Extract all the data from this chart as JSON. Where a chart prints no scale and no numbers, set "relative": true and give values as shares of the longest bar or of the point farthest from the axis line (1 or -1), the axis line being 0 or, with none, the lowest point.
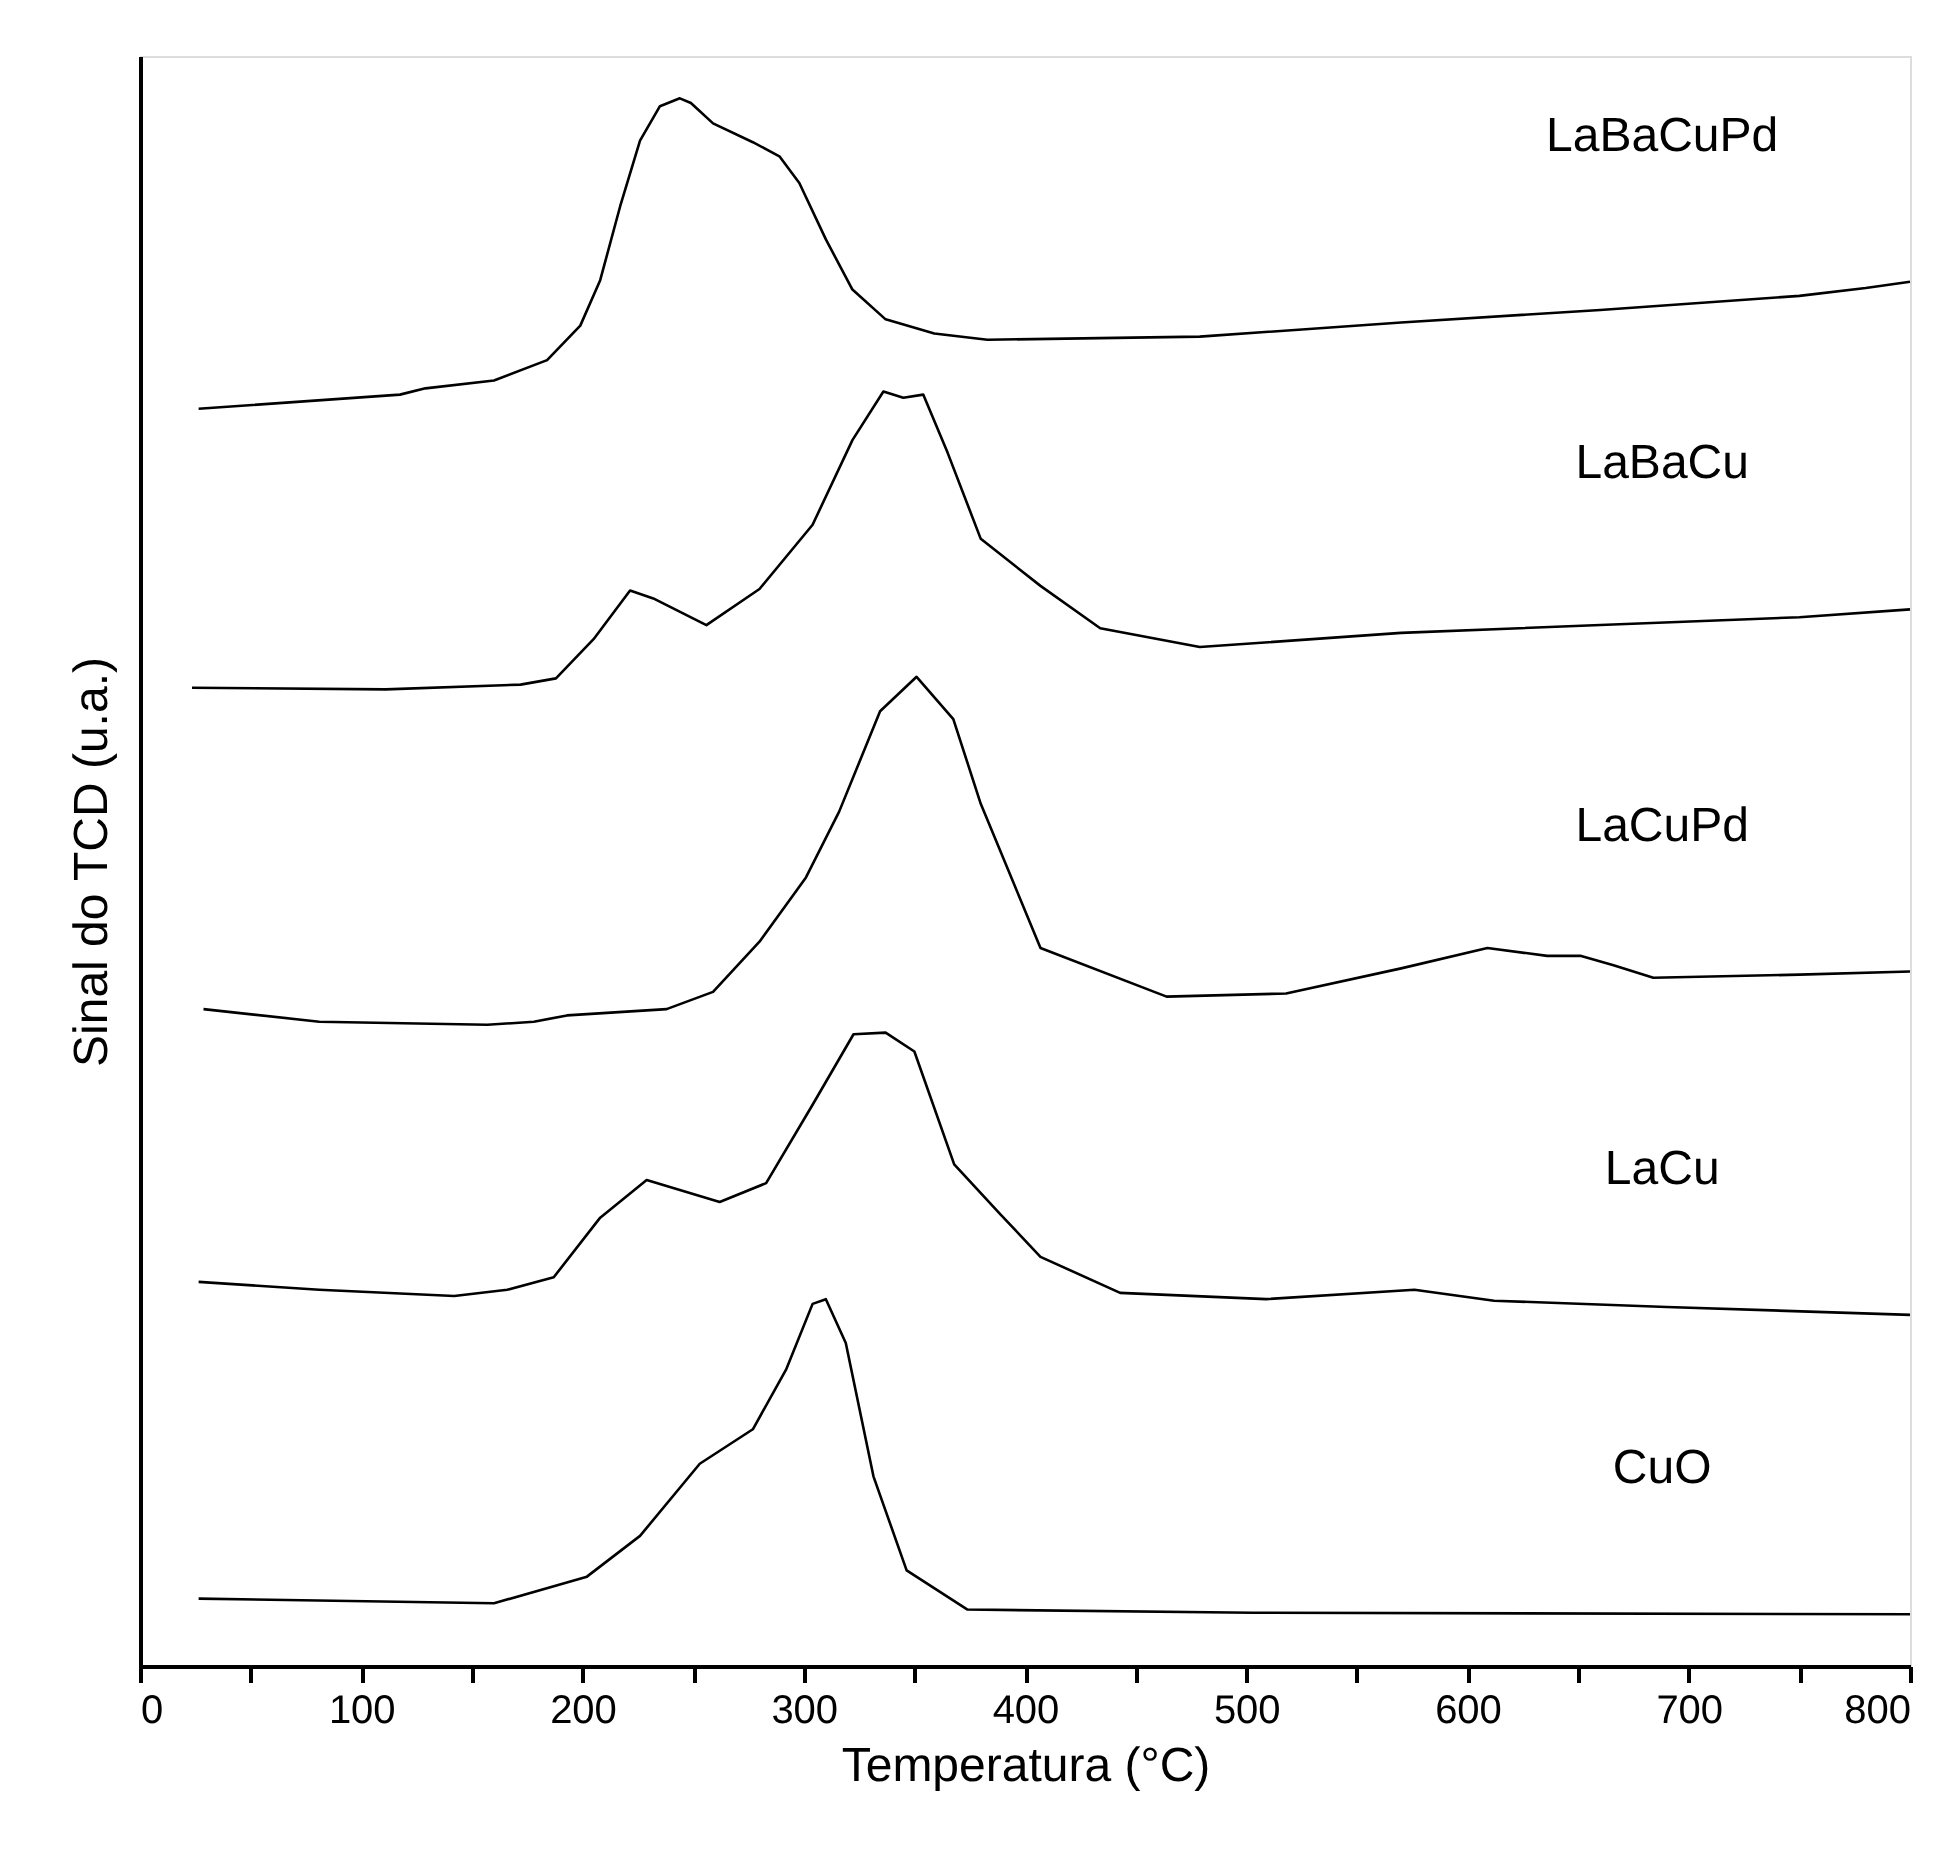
{
  "chart_data": {
    "type": "line",
    "relative": true,
    "xlabel": "Temperatura (°C)",
    "ylabel": "Sinal do TCD (u.a.)",
    "xlim": [
      0,
      800
    ],
    "xticks": [
      0,
      {
        "value": 50,
        "label": null
      },
      100,
      {
        "value": 150,
        "label": null
      },
      200,
      {
        "value": 250,
        "label": null
      },
      300,
      {
        "value": 350,
        "label": null
      },
      400,
      {
        "value": 450,
        "label": null
      },
      500,
      {
        "value": 550,
        "label": null
      },
      600,
      {
        "value": 650,
        "label": null
      },
      700,
      {
        "value": 750,
        "label": null
      },
      800
    ],
    "grid": false,
    "legend": false,
    "marker": "none",
    "line_style": "solid",
    "series": [
      {
        "name": "LaBaCuPd",
        "color": "#000000",
        "x": [
          26.5,
          117.5,
          129,
          160,
          184,
          199,
          208,
          217,
          226,
          235,
          244,
          249,
          259,
          277,
          289,
          298,
          310,
          322,
          337,
          359,
          383,
          479,
          570,
          660,
          750,
          780,
          800
        ],
        "values": [
          0.802,
          0.811,
          0.815,
          0.82,
          0.833,
          0.855,
          0.884,
          0.931,
          0.973,
          0.995,
          1.0,
          0.997,
          0.984,
          0.972,
          0.963,
          0.946,
          0.91,
          0.878,
          0.859,
          0.85,
          0.846,
          0.848,
          0.857,
          0.865,
          0.874,
          0.879,
          0.883
        ]
      },
      {
        "name": "LaBaCu",
        "color": "#000000",
        "x": [
          23.5,
          111,
          172,
          188,
          205,
          221.5,
          232,
          256,
          280,
          304,
          322,
          336,
          345,
          354,
          365,
          380,
          407,
          434,
          479,
          570,
          660,
          750,
          800
        ],
        "values": [
          0.624,
          0.623,
          0.626,
          0.63,
          0.655,
          0.686,
          0.681,
          0.664,
          0.687,
          0.728,
          0.782,
          0.813,
          0.809,
          0.811,
          0.774,
          0.719,
          0.689,
          0.662,
          0.65,
          0.659,
          0.664,
          0.669,
          0.674
        ]
      },
      {
        "name": "LaCuPd",
        "color": "#000000",
        "x": [
          28.7,
          81,
          157,
          178,
          193,
          238,
          259,
          280,
          301,
          316,
          334.5,
          351,
          367.6,
          380,
          407,
          464,
          518,
          570,
          609,
          636,
          651,
          666,
          684,
          750,
          800
        ],
        "values": [
          0.419,
          0.411,
          0.409,
          0.411,
          0.415,
          0.419,
          0.43,
          0.462,
          0.503,
          0.545,
          0.609,
          0.631,
          0.604,
          0.55,
          0.458,
          0.427,
          0.429,
          0.445,
          0.458,
          0.453,
          0.453,
          0.447,
          0.439,
          0.441,
          0.443
        ]
      },
      {
        "name": "LaCu",
        "color": "#000000",
        "x": [
          26.5,
          81,
          142,
          166,
          187,
          208,
          229,
          262,
          283,
          304,
          322.5,
          337,
          350,
          368,
          389,
          407,
          443,
          509,
          576,
          612,
          690,
          800
        ],
        "values": [
          0.245,
          0.24,
          0.236,
          0.24,
          0.248,
          0.286,
          0.31,
          0.296,
          0.308,
          0.358,
          0.403,
          0.404,
          0.392,
          0.32,
          0.288,
          0.261,
          0.238,
          0.234,
          0.24,
          0.233,
          0.229,
          0.224
        ]
      },
      {
        "name": "CuO",
        "color": "#000000",
        "x": [
          26.5,
          160,
          202,
          226,
          253,
          277,
          292,
          304,
          310,
          319,
          331.5,
          346.5,
          374,
          503,
          800
        ],
        "values": [
          0.043,
          0.04,
          0.057,
          0.083,
          0.129,
          0.151,
          0.189,
          0.231,
          0.234,
          0.206,
          0.121,
          0.061,
          0.036,
          0.034,
          0.033
        ]
      }
    ]
  }
}
